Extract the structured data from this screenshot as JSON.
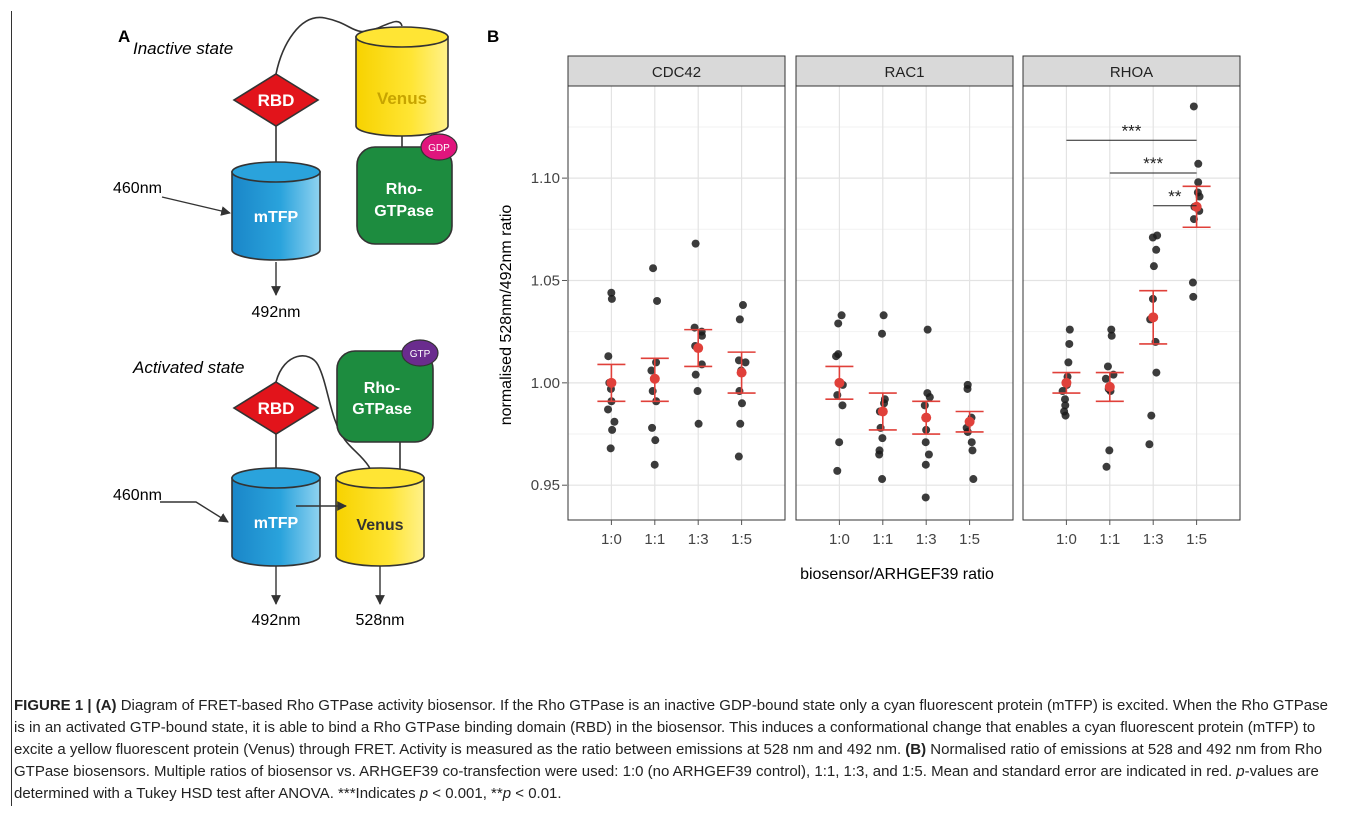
{
  "panel_a": {
    "label": "A",
    "inactive": {
      "title": "Inactive state",
      "rbd": "RBD",
      "venus": "Venus",
      "mtfp": "mTFP",
      "gtpase_line1": "Rho-",
      "gtpase_line2": "GTPase",
      "nucleotide": "GDP",
      "excitation": "460nm",
      "emission": "492nm"
    },
    "activated": {
      "title": "Activated state",
      "rbd": "RBD",
      "venus": "Venus",
      "mtfp": "mTFP",
      "gtpase_line1": "Rho-",
      "gtpase_line2": "GTPase",
      "nucleotide": "GTP",
      "excitation": "460nm",
      "emission_mtfp": "492nm",
      "emission_venus": "528nm"
    },
    "colors": {
      "rbd": "#e2141b",
      "venus": "#ffe11a",
      "mtfp": "#1d9ad6",
      "gtpase": "#1d8c3f",
      "gdp": "#e0157d",
      "gtp": "#6a2c8e"
    }
  },
  "chart_data": {
    "type": "scatter",
    "panel_label": "B",
    "ylabel": "normalised 528nm/492nm ratio",
    "xlabel": "biosensor/ARHGEF39 ratio",
    "ylim": [
      0.933,
      1.145
    ],
    "yticks": [
      0.95,
      1.0,
      1.05,
      1.1
    ],
    "ytick_labels": [
      "0.95",
      "1.00",
      "1.05",
      "1.10"
    ],
    "categories": [
      "1:0",
      "1:1",
      "1:3",
      "1:5"
    ],
    "grid": true,
    "point_color": "#1a1a1a",
    "summary_color": "#e0403a",
    "facets": [
      {
        "name": "CDC42",
        "groups": [
          {
            "points": [
              1.044,
              1.041,
              1.013,
              1.0,
              0.997,
              0.991,
              0.987,
              0.981,
              0.977,
              0.968
            ],
            "mean": 1.0,
            "se": [
              0.991,
              1.009
            ]
          },
          {
            "points": [
              1.056,
              1.04,
              1.01,
              1.006,
              1.002,
              0.996,
              0.991,
              0.978,
              0.972,
              0.96
            ],
            "mean": 1.002,
            "se": [
              0.991,
              1.012
            ]
          },
          {
            "points": [
              1.068,
              1.027,
              1.025,
              1.023,
              1.018,
              1.017,
              1.009,
              1.004,
              0.996,
              0.98
            ],
            "mean": 1.017,
            "se": [
              1.008,
              1.026
            ]
          },
          {
            "points": [
              1.038,
              1.031,
              1.011,
              1.01,
              1.006,
              0.996,
              0.99,
              0.98,
              0.964
            ],
            "mean": 1.005,
            "se": [
              0.995,
              1.015
            ]
          }
        ]
      },
      {
        "name": "RAC1",
        "groups": [
          {
            "points": [
              1.033,
              1.029,
              1.014,
              1.013,
              0.999,
              0.994,
              0.989,
              0.971,
              0.957
            ],
            "mean": 1.0,
            "se": [
              0.992,
              1.008
            ]
          },
          {
            "points": [
              1.033,
              1.024,
              0.992,
              0.99,
              0.986,
              0.978,
              0.973,
              0.967,
              0.965,
              0.953
            ],
            "mean": 0.986,
            "se": [
              0.977,
              0.995
            ]
          },
          {
            "points": [
              1.026,
              0.995,
              0.993,
              0.989,
              0.983,
              0.977,
              0.971,
              0.965,
              0.96,
              0.944
            ],
            "mean": 0.983,
            "se": [
              0.975,
              0.991
            ]
          },
          {
            "points": [
              0.999,
              0.997,
              0.983,
              0.978,
              0.976,
              0.971,
              0.967,
              0.953
            ],
            "mean": 0.981,
            "se": [
              0.976,
              0.986
            ]
          }
        ]
      },
      {
        "name": "RHOA",
        "groups": [
          {
            "points": [
              1.026,
              1.019,
              1.01,
              1.003,
              0.999,
              0.996,
              0.992,
              0.989,
              0.986,
              0.984
            ],
            "mean": 1.0,
            "se": [
              0.995,
              1.005
            ]
          },
          {
            "points": [
              1.026,
              1.023,
              1.008,
              1.004,
              1.002,
              0.997,
              0.996,
              0.967,
              0.959
            ],
            "mean": 0.998,
            "se": [
              0.991,
              1.005
            ]
          },
          {
            "points": [
              1.072,
              1.071,
              1.065,
              1.057,
              1.041,
              1.031,
              1.02,
              1.005,
              0.984,
              0.97
            ],
            "mean": 1.032,
            "se": [
              1.019,
              1.045
            ]
          },
          {
            "points": [
              1.135,
              1.107,
              1.098,
              1.093,
              1.091,
              1.086,
              1.084,
              1.08,
              1.049,
              1.042
            ],
            "mean": 1.086,
            "se": [
              1.076,
              1.096
            ]
          }
        ],
        "significance": [
          {
            "from": 0,
            "to": 3,
            "label": "***",
            "y": 1.1185
          },
          {
            "from": 1,
            "to": 3,
            "label": "***",
            "y": 1.1025
          },
          {
            "from": 2,
            "to": 3,
            "label": "**",
            "y": 1.0865
          }
        ]
      }
    ]
  },
  "caption": {
    "fig": "FIGURE 1 | ",
    "a_label": "(A)",
    "a_text": " Diagram of FRET-based Rho GTPase activity biosensor. If the Rho GTPase is an inactive GDP-bound state only a cyan fluorescent protein (mTFP) is excited. When the Rho GTPase is in an activated GTP-bound state, it is able to bind a Rho GTPase binding domain (RBD) in the biosensor. This induces a conformational change that enables a cyan fluorescent protein (mTFP) to excite a yellow fluorescent protein (Venus) through FRET. Activity is measured as the ratio between emissions at 528 nm and 492 nm. ",
    "b_label": "(B)",
    "b_text1": " Normalised ratio of emissions at 528 and 492 nm from Rho GTPase biosensors. Multiple ratios of biosensor vs. ARHGEF39 co-transfection were used: 1:0 (no ARHGEF39 control), 1:1, 1:3, and 1:5. Mean and standard error are indicated in red. ",
    "p_italic": "p",
    "b_text2": "-values are determined with a Tukey HSD test after ANOVA. ***Indicates ",
    "p2": "p",
    "b_text3": " < 0.001, **",
    "p3": "p",
    "b_text4": " < 0.01."
  }
}
